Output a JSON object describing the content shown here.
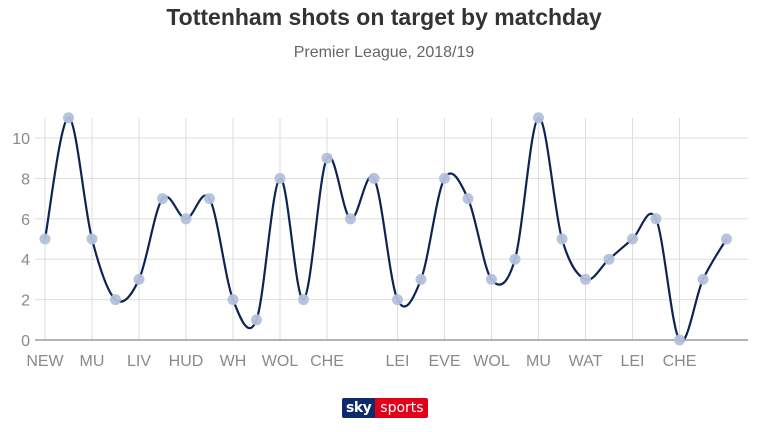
{
  "chart_data": {
    "type": "line",
    "title": "Tottenham shots on target by matchday",
    "subtitle": "Premier League, 2018/19",
    "xlabel": "",
    "ylabel": "",
    "x_tick_labels": [
      "NEW",
      "MU",
      "LIV",
      "HUD",
      "WH",
      "WOL",
      "CHE",
      "LEI",
      "EVE",
      "WOL",
      "MU",
      "WAT",
      "LEI",
      "CHE"
    ],
    "x_tick_positions": [
      1,
      3,
      5,
      7,
      9,
      11,
      13,
      16,
      18,
      20,
      22,
      24,
      26,
      28
    ],
    "y_ticks": [
      0,
      2,
      4,
      6,
      8,
      10
    ],
    "ylim": [
      0,
      11
    ],
    "xlim": [
      1,
      30
    ],
    "grid": true,
    "smooth": true,
    "series": [
      {
        "x": [
          1,
          2,
          3,
          4,
          5,
          6,
          7,
          8,
          9,
          10,
          11,
          12,
          13,
          14,
          15,
          16,
          17,
          18,
          19,
          20,
          21,
          22,
          23,
          24,
          25,
          26,
          27,
          28,
          29,
          30
        ],
        "values": [
          5,
          11,
          5,
          2,
          3,
          7,
          6,
          7,
          2,
          1,
          8,
          2,
          9,
          6,
          8,
          2,
          3,
          8,
          7,
          3,
          4,
          11,
          5,
          3,
          4,
          5,
          6,
          0,
          3,
          5
        ]
      }
    ],
    "colors": {
      "line": "#0d2453",
      "marker": "#b4c0dc",
      "grid": "#dedede",
      "axis": "#9a9a9a"
    }
  },
  "branding": {
    "part_a": "sky",
    "part_b": "sports"
  }
}
